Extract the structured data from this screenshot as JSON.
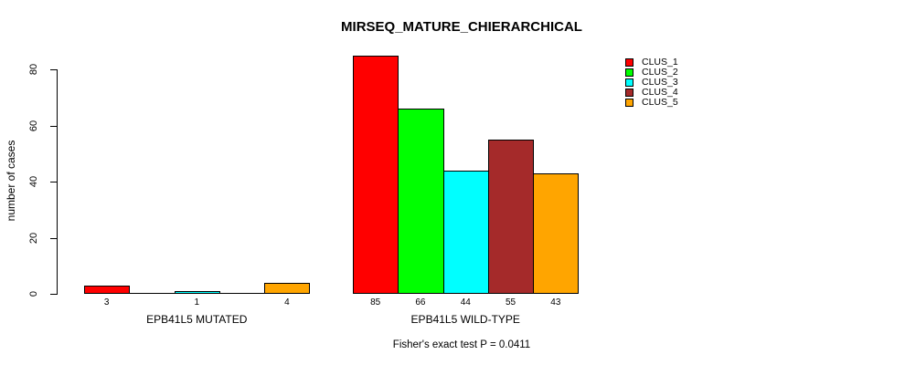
{
  "chart_data": {
    "type": "bar",
    "title": "MIRSEQ_MATURE_CHIERARCHICAL",
    "ylabel": "number of cases",
    "xlabel": "",
    "subtitle": "Fisher's exact test P = 0.0411",
    "ylim": [
      0,
      80
    ],
    "yticks": [
      0,
      20,
      40,
      60,
      80
    ],
    "grid": false,
    "legend_position": "top-right",
    "series": [
      {
        "name": "CLUS_1",
        "color": "#FF0000"
      },
      {
        "name": "CLUS_2",
        "color": "#00FF00"
      },
      {
        "name": "CLUS_3",
        "color": "#00FFFF"
      },
      {
        "name": "CLUS_4",
        "color": "#A52A2A"
      },
      {
        "name": "CLUS_5",
        "color": "#FFA500"
      }
    ],
    "groups": [
      {
        "label": "EPB41L5 MUTATED",
        "values": [
          3,
          0,
          1,
          0,
          4
        ],
        "bar_labels": [
          "3",
          "",
          "1",
          "",
          "4"
        ]
      },
      {
        "label": "EPB41L5 WILD-TYPE",
        "values": [
          85,
          66,
          44,
          55,
          43
        ],
        "bar_labels": [
          "85",
          "66",
          "44",
          "55",
          "43"
        ]
      }
    ]
  },
  "colors": {
    "background": "#FFFFFF",
    "axis": "#000000",
    "text": "#000000"
  }
}
